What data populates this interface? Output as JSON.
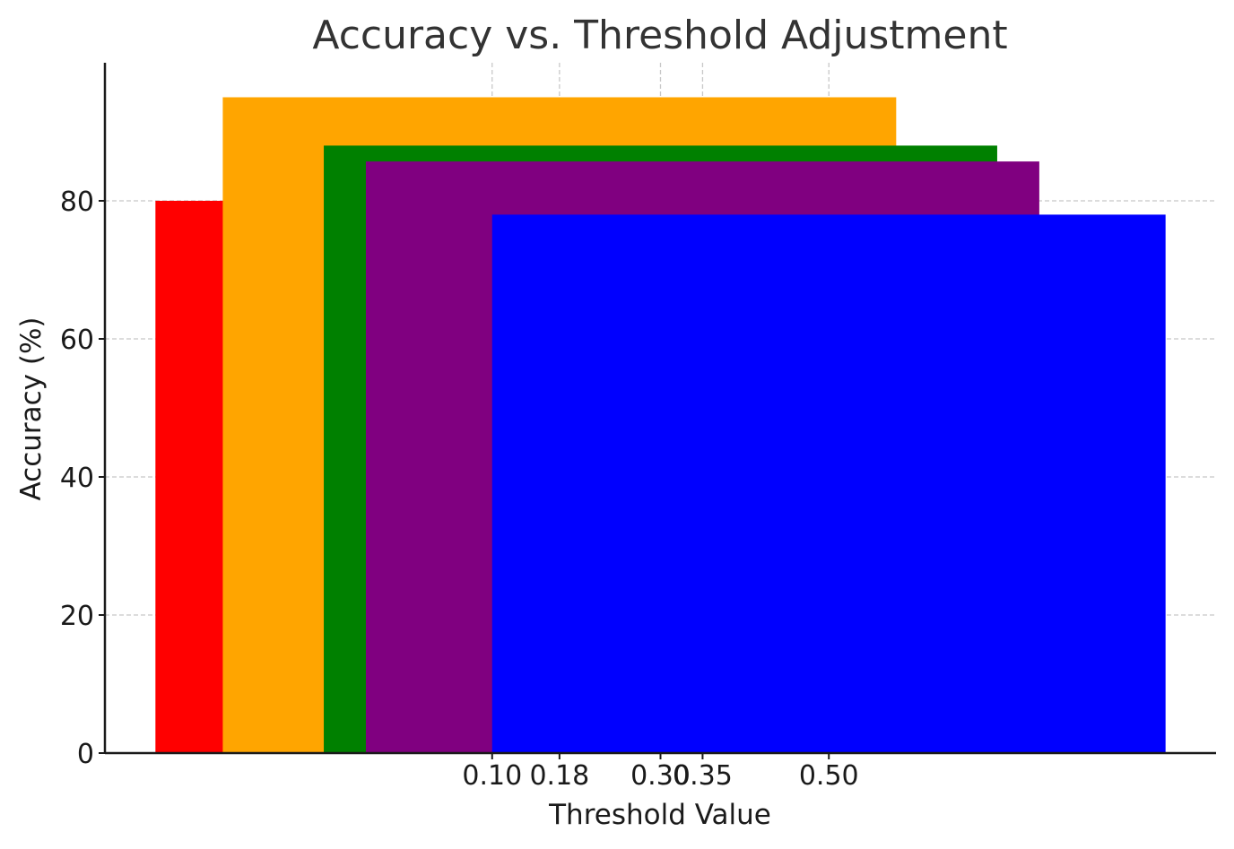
{
  "chart_data": {
    "type": "bar",
    "title": "Accuracy vs. Threshold Adjustment",
    "xlabel": "Threshold Value",
    "ylabel": "Accuracy (%)",
    "x_ticks": [
      0.1,
      0.18,
      0.3,
      0.35,
      0.5
    ],
    "x_tick_labels": [
      "0.10",
      "0.18",
      "0.30",
      "0.35",
      "0.50"
    ],
    "xlim": [
      -0.36,
      0.96
    ],
    "y_ticks": [
      0,
      20,
      40,
      60,
      80
    ],
    "y_tick_labels": [
      "0",
      "20",
      "40",
      "60",
      "80"
    ],
    "ylim": [
      0,
      100
    ],
    "grid": true,
    "bars": [
      {
        "x": 0.1,
        "width": 0.8,
        "value": 80,
        "color": "#ff0000"
      },
      {
        "x": 0.18,
        "width": 0.8,
        "value": 95,
        "color": "#ffa500"
      },
      {
        "x": 0.3,
        "width": 0.8,
        "value": 88,
        "color": "#008000"
      },
      {
        "x": 0.35,
        "width": 0.8,
        "value": 85.7,
        "color": "#800080"
      },
      {
        "x": 0.5,
        "width": 0.8,
        "value": 78,
        "color": "#0000ff"
      }
    ]
  }
}
